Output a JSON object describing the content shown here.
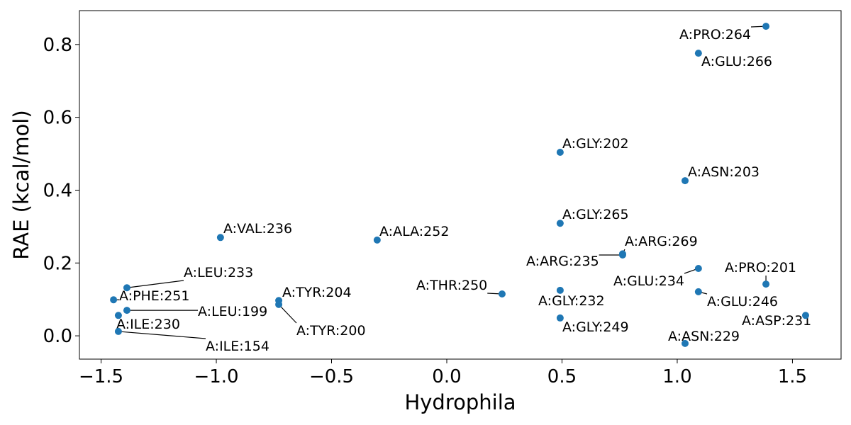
{
  "chart_data": {
    "type": "scatter",
    "xlabel": "Hydrophila",
    "ylabel": "RAE (kcal/mol)",
    "color": "#1f77b4",
    "labels": [
      "A:PRO:264",
      "A:GLU:266",
      "A:GLY:202",
      "A:ASN:203",
      "A:GLY:265",
      "A:VAL:236",
      "A:ALA:252",
      "A:ARG:269",
      "A:ARG:235",
      "A:GLU:234",
      "A:PRO:201",
      "A:LEU:233",
      "A:GLU:246",
      "A:GLY:232",
      "A:THR:250",
      "A:PHE:251",
      "A:TYR:204",
      "A:TYR:200",
      "A:LEU:199",
      "A:ILE:230",
      "A:ASP:231",
      "A:GLY:249",
      "A:ILE:154",
      "A:ASN:229"
    ],
    "x": [
      1.385,
      1.092,
      0.492,
      1.034,
      0.492,
      -0.982,
      -0.302,
      0.763,
      0.763,
      1.092,
      1.385,
      -1.388,
      1.092,
      0.492,
      0.24,
      -1.446,
      -0.729,
      -0.729,
      -1.388,
      -1.425,
      1.557,
      0.492,
      -1.425,
      1.034
    ],
    "values": [
      0.85,
      0.776,
      0.504,
      0.426,
      0.309,
      0.27,
      0.263,
      0.225,
      0.222,
      0.185,
      0.142,
      0.132,
      0.121,
      0.125,
      0.115,
      0.099,
      0.097,
      0.086,
      0.07,
      0.056,
      0.056,
      0.049,
      0.012,
      -0.021
    ],
    "xlim": [
      -1.594,
      1.711
    ],
    "ylim": [
      -0.064,
      0.893
    ],
    "xticks": [
      {
        "value": -1.5,
        "label": "−1.5"
      },
      {
        "value": -1.0,
        "label": "−1.0"
      },
      {
        "value": -0.5,
        "label": "−0.5"
      },
      {
        "value": 0,
        "label": "0.0"
      },
      0.5,
      {
        "value": 1,
        "label": "1.0"
      },
      1.5
    ],
    "yticks": [
      {
        "value": 0,
        "label": "0.0"
      },
      0.2,
      0.4,
      0.6,
      0.8
    ]
  }
}
